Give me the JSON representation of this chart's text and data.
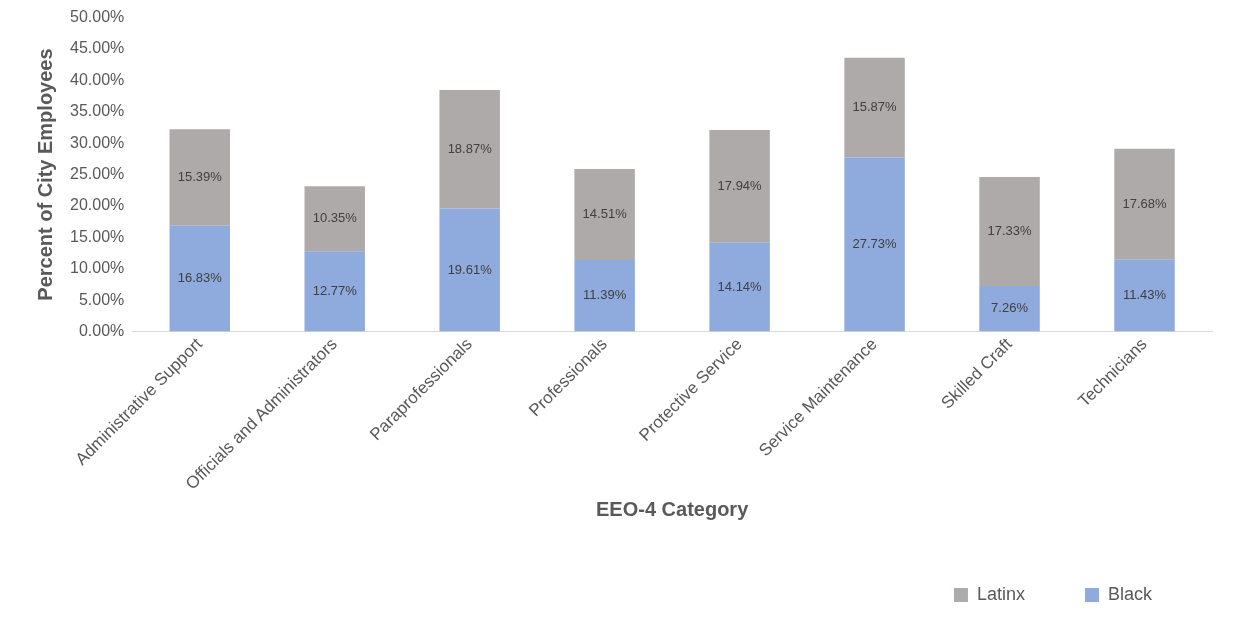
{
  "chart_data": {
    "type": "bar",
    "stacked": true,
    "xlabel": "EEO-4 Category",
    "ylabel": "Percent of City Employees",
    "categories": [
      "Administrative Support",
      "Officials and Administrators",
      "Paraprofessionals",
      "Professionals",
      "Protective Service",
      "Service Maintenance",
      "Skilled Craft",
      "Technicians"
    ],
    "series": [
      {
        "name": "Black",
        "color": "#8faadc",
        "values": [
          16.83,
          12.77,
          19.61,
          11.39,
          14.14,
          27.73,
          7.26,
          11.43
        ],
        "value_labels": [
          "16.83%",
          "12.77%",
          "19.61%",
          "11.39%",
          "14.14%",
          "27.73%",
          "7.26%",
          "11.43%"
        ]
      },
      {
        "name": "Latinx",
        "color": "#aeaaaa",
        "values": [
          15.39,
          10.35,
          18.87,
          14.51,
          17.94,
          15.87,
          17.33,
          17.68
        ],
        "value_labels": [
          "15.39%",
          "10.35%",
          "18.87%",
          "14.51%",
          "17.94%",
          "15.87%",
          "17.33%",
          "17.68%"
        ]
      }
    ],
    "ylim": [
      0,
      50
    ],
    "yticks": [
      {
        "value": 0,
        "label": "0.00%"
      },
      {
        "value": 5,
        "label": "5.00%"
      },
      {
        "value": 10,
        "label": "10.00%"
      },
      {
        "value": 15,
        "label": "15.00%"
      },
      {
        "value": 20,
        "label": "20.00%"
      },
      {
        "value": 25,
        "label": "25.00%"
      },
      {
        "value": 30,
        "label": "30.00%"
      },
      {
        "value": 35,
        "label": "35.00%"
      },
      {
        "value": 40,
        "label": "40.00%"
      },
      {
        "value": 45,
        "label": "45.00%"
      },
      {
        "value": 50,
        "label": "50.00%"
      }
    ],
    "grid": false,
    "legend": "bottom right"
  }
}
